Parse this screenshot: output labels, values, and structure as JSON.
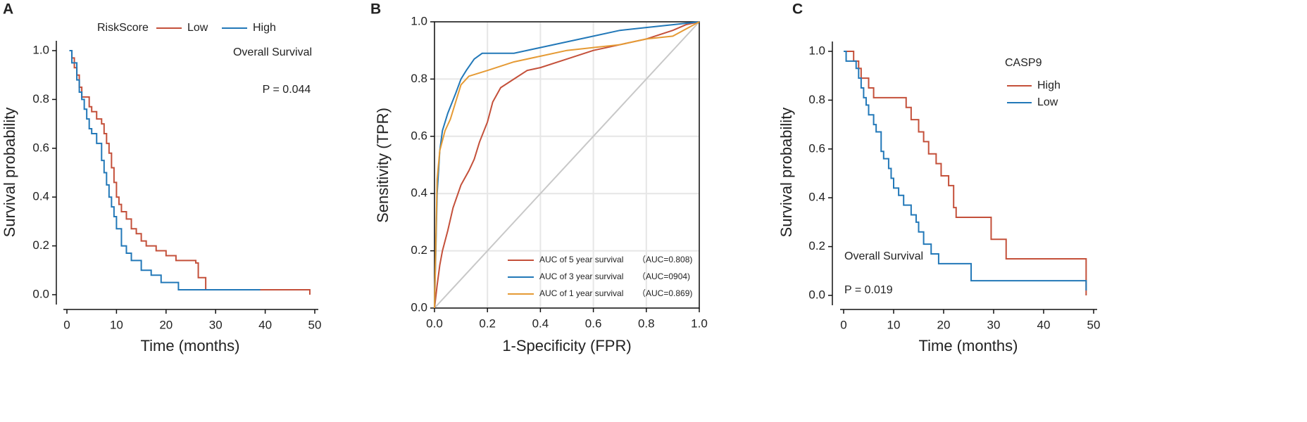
{
  "chart_data": [
    {
      "type": "line",
      "step": true,
      "panel": "A",
      "x_label": "Time (months)",
      "y_label": "Survival probability",
      "legend_title": "RiskScore",
      "legend": "top",
      "annotations": [
        "Overall Survival",
        "P = 0.044"
      ],
      "xlim": [
        0,
        50
      ],
      "xticks": [
        0,
        10,
        20,
        30,
        40,
        50
      ],
      "ylim": [
        0,
        1
      ],
      "yticks": [
        {
          "value": 0,
          "label": "0.0"
        },
        0.2,
        0.4,
        0.6,
        0.8,
        {
          "value": 1,
          "label": "1.0"
        }
      ],
      "series": [
        {
          "name": "Low",
          "color": "#c4503a",
          "x": [
            0.5,
            1,
            1.5,
            2,
            2.5,
            3,
            4.5,
            5,
            6,
            7,
            7.5,
            8,
            8.5,
            9,
            9.5,
            10,
            10.5,
            11,
            12,
            13,
            14,
            15,
            16,
            18,
            20,
            22,
            26,
            26.5,
            28,
            49
          ],
          "values": [
            1.0,
            0.97,
            0.93,
            0.9,
            0.85,
            0.81,
            0.77,
            0.75,
            0.72,
            0.7,
            0.66,
            0.62,
            0.58,
            0.52,
            0.46,
            0.4,
            0.37,
            0.34,
            0.31,
            0.27,
            0.25,
            0.22,
            0.2,
            0.18,
            0.16,
            0.14,
            0.13,
            0.07,
            0.02,
            0.0
          ]
        },
        {
          "name": "High",
          "color": "#2278b8",
          "x": [
            0.5,
            1,
            2,
            2.5,
            3,
            3.5,
            4,
            4.5,
            5,
            6,
            7,
            7.5,
            8,
            8.5,
            9,
            9.5,
            10,
            11,
            12,
            13,
            15,
            17,
            19,
            22.5,
            39
          ],
          "values": [
            1.0,
            0.95,
            0.88,
            0.83,
            0.8,
            0.76,
            0.72,
            0.68,
            0.66,
            0.62,
            0.55,
            0.5,
            0.45,
            0.4,
            0.36,
            0.32,
            0.27,
            0.2,
            0.17,
            0.14,
            0.1,
            0.08,
            0.05,
            0.02,
            0.02
          ]
        }
      ]
    },
    {
      "type": "line",
      "step": false,
      "panel": "B",
      "grid": true,
      "diagonal": true,
      "x_label": "1-Specificity (FPR)",
      "y_label": "Sensitivity (TPR)",
      "legend": "lower right",
      "xlim": [
        0,
        1
      ],
      "xticks": [
        {
          "value": 0,
          "label": "0.0"
        },
        0.2,
        0.4,
        0.6,
        0.8,
        {
          "value": 1,
          "label": "1.0"
        }
      ],
      "ylim": [
        0,
        1
      ],
      "yticks": [
        {
          "value": 0,
          "label": "0.0"
        },
        0.2,
        0.4,
        0.6,
        0.8,
        {
          "value": 1,
          "label": "1.0"
        }
      ],
      "series": [
        {
          "name": "AUC of 5 year survival",
          "auc_label": "（AUC=0.808)",
          "color": "#c4503a",
          "x": [
            0,
            0.01,
            0.02,
            0.03,
            0.05,
            0.07,
            0.1,
            0.13,
            0.15,
            0.17,
            0.2,
            0.22,
            0.25,
            0.3,
            0.35,
            0.4,
            0.5,
            0.6,
            0.7,
            0.8,
            0.9,
            0.95,
            1
          ],
          "values": [
            0,
            0.08,
            0.15,
            0.2,
            0.27,
            0.35,
            0.43,
            0.48,
            0.52,
            0.58,
            0.65,
            0.72,
            0.77,
            0.8,
            0.83,
            0.84,
            0.87,
            0.9,
            0.92,
            0.94,
            0.97,
            0.99,
            1
          ]
        },
        {
          "name": "AUC of 3 year survival",
          "auc_label": "（AUC=0904)",
          "color": "#2278b8",
          "x": [
            0,
            0.01,
            0.02,
            0.03,
            0.05,
            0.08,
            0.1,
            0.12,
            0.15,
            0.18,
            0.3,
            0.4,
            0.5,
            0.6,
            0.7,
            0.8,
            0.9,
            1
          ],
          "values": [
            0,
            0.4,
            0.55,
            0.62,
            0.68,
            0.75,
            0.8,
            0.83,
            0.87,
            0.89,
            0.89,
            0.91,
            0.93,
            0.95,
            0.97,
            0.98,
            0.99,
            1
          ]
        },
        {
          "name": "AUC of 1 year survival",
          "auc_label": "（AUC=0.869)",
          "color": "#e59a34",
          "x": [
            0,
            0.01,
            0.02,
            0.04,
            0.06,
            0.08,
            0.1,
            0.13,
            0.2,
            0.3,
            0.4,
            0.5,
            0.6,
            0.7,
            0.8,
            0.9,
            1
          ],
          "values": [
            0,
            0.45,
            0.55,
            0.62,
            0.66,
            0.72,
            0.78,
            0.81,
            0.83,
            0.86,
            0.88,
            0.9,
            0.91,
            0.92,
            0.94,
            0.95,
            1
          ]
        }
      ]
    },
    {
      "type": "line",
      "step": true,
      "panel": "C",
      "x_label": "Time (months)",
      "y_label": "Survival probability",
      "legend_title": "CASP9",
      "legend": "upper right",
      "annotations": [
        "Overall Survival",
        "P = 0.019"
      ],
      "xlim": [
        0,
        50
      ],
      "xticks": [
        0,
        10,
        20,
        30,
        40,
        50
      ],
      "ylim": [
        0,
        1
      ],
      "yticks": [
        {
          "value": 0,
          "label": "0.0"
        },
        0.2,
        0.4,
        0.6,
        0.8,
        {
          "value": 1,
          "label": "1.0"
        }
      ],
      "series": [
        {
          "name": "High",
          "color": "#c4503a",
          "x": [
            0,
            2,
            3,
            3.5,
            5,
            6,
            12.5,
            13.5,
            15,
            16,
            17,
            18.5,
            19.5,
            21,
            22,
            22.5,
            29.5,
            32.5,
            48.5
          ],
          "values": [
            1.0,
            0.96,
            0.93,
            0.89,
            0.85,
            0.81,
            0.77,
            0.72,
            0.67,
            0.63,
            0.58,
            0.54,
            0.49,
            0.45,
            0.36,
            0.32,
            0.23,
            0.15,
            0.0
          ]
        },
        {
          "name": "Low",
          "color": "#2278b8",
          "x": [
            0,
            0.5,
            2.5,
            3,
            3.5,
            4,
            4.5,
            5,
            6,
            6.5,
            7.5,
            8,
            9,
            9.5,
            10,
            11,
            12,
            13.5,
            14.5,
            15,
            16,
            17.5,
            19,
            25.5,
            48.5
          ],
          "values": [
            1.0,
            0.96,
            0.93,
            0.89,
            0.85,
            0.81,
            0.78,
            0.74,
            0.7,
            0.67,
            0.59,
            0.56,
            0.52,
            0.48,
            0.44,
            0.41,
            0.37,
            0.33,
            0.3,
            0.26,
            0.21,
            0.17,
            0.13,
            0.06,
            0.02
          ]
        }
      ]
    }
  ]
}
